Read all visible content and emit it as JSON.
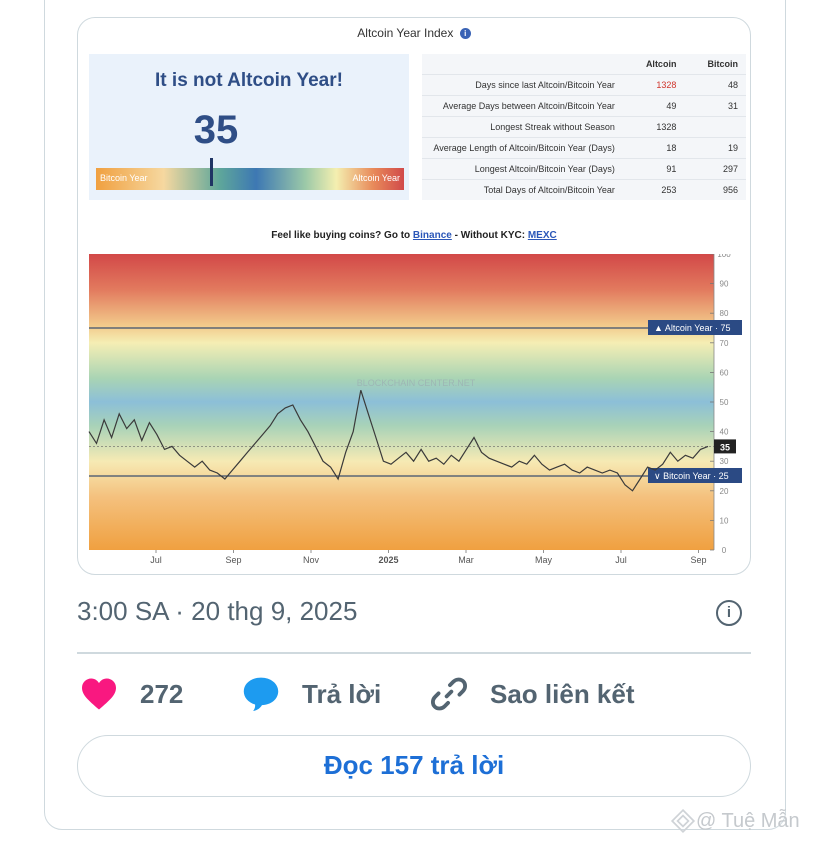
{
  "post_image": {
    "title": "Altcoin Year Index",
    "headline": "It is not Altcoin Year!",
    "index_value": "35",
    "gauge": {
      "left_label": "Bitcoin Year",
      "right_label": "Altcoin Year",
      "position": 0.35
    },
    "stats_table": {
      "headers": [
        "Altcoin",
        "Bitcoin"
      ],
      "rows": [
        {
          "label": "Days since last Altcoin/Bitcoin Year",
          "altcoin": "1328",
          "bitcoin": "48"
        },
        {
          "label": "Average Days between Altcoin/Bitcoin Year",
          "altcoin": "49",
          "bitcoin": "31"
        },
        {
          "label": "Longest Streak without Season",
          "altcoin": "1328",
          "bitcoin": ""
        },
        {
          "label": "Average Length of Altcoin/Bitcoin Year (Days)",
          "altcoin": "18",
          "bitcoin": "19"
        },
        {
          "label": "Longest Altcoin/Bitcoin Year (Days)",
          "altcoin": "91",
          "bitcoin": "297"
        },
        {
          "label": "Total Days of Altcoin/Bitcoin Year",
          "altcoin": "253",
          "bitcoin": "956"
        }
      ]
    },
    "promo": {
      "prefix": "Feel like buying coins? Go to",
      "link1": "Binance",
      "middle": "- Without KYC:",
      "link2": "MEXC"
    },
    "watermark_text": "BLOCKCHAIN CENTER.NET"
  },
  "chart_data": {
    "type": "line",
    "x_labels": [
      "Jul",
      "Sep",
      "Nov",
      "2025",
      "Mar",
      "May",
      "Jul",
      "Sep"
    ],
    "y_ticks": [
      0,
      10,
      20,
      30,
      40,
      50,
      60,
      70,
      80,
      90,
      100
    ],
    "ylim": [
      0,
      100
    ],
    "thresholds": [
      {
        "label": "Altcoin Year",
        "value": 75
      },
      {
        "label": "Bitcoin Year",
        "value": 25
      }
    ],
    "current_value": 35,
    "series": [
      {
        "values": [
          40,
          36,
          44,
          38,
          46,
          41,
          44,
          37,
          43,
          39,
          34,
          35,
          32,
          30,
          28,
          30,
          27,
          26,
          24,
          27,
          30,
          33,
          36,
          39,
          42,
          46,
          48,
          49,
          44,
          40,
          35,
          30,
          28,
          24,
          33,
          40,
          54,
          46,
          38,
          30,
          29,
          31,
          33,
          30,
          34,
          30,
          31,
          29,
          32,
          30,
          34,
          38,
          33,
          31,
          30,
          29,
          28,
          30,
          29,
          32,
          29,
          27,
          28,
          29,
          27,
          26,
          28,
          27,
          26,
          27,
          26,
          22,
          20,
          24,
          28,
          27,
          29,
          33,
          30,
          32,
          31,
          34,
          35
        ]
      }
    ]
  },
  "tweet": {
    "timestamp": "3:00 SA · 20 thg 9, 2025",
    "like_count": "272",
    "reply_label": "Trả lời",
    "copy_link_label": "Sao liên kết",
    "read_replies_label": "Đọc 157 trả lời"
  },
  "footer_watermark": "@ Tuệ Mẫn",
  "colors": {
    "like_heart": "#f91880",
    "reply_bubble": "#1d9bf0",
    "read_button_text": "#1d6fd6",
    "muted_text": "#536471"
  }
}
